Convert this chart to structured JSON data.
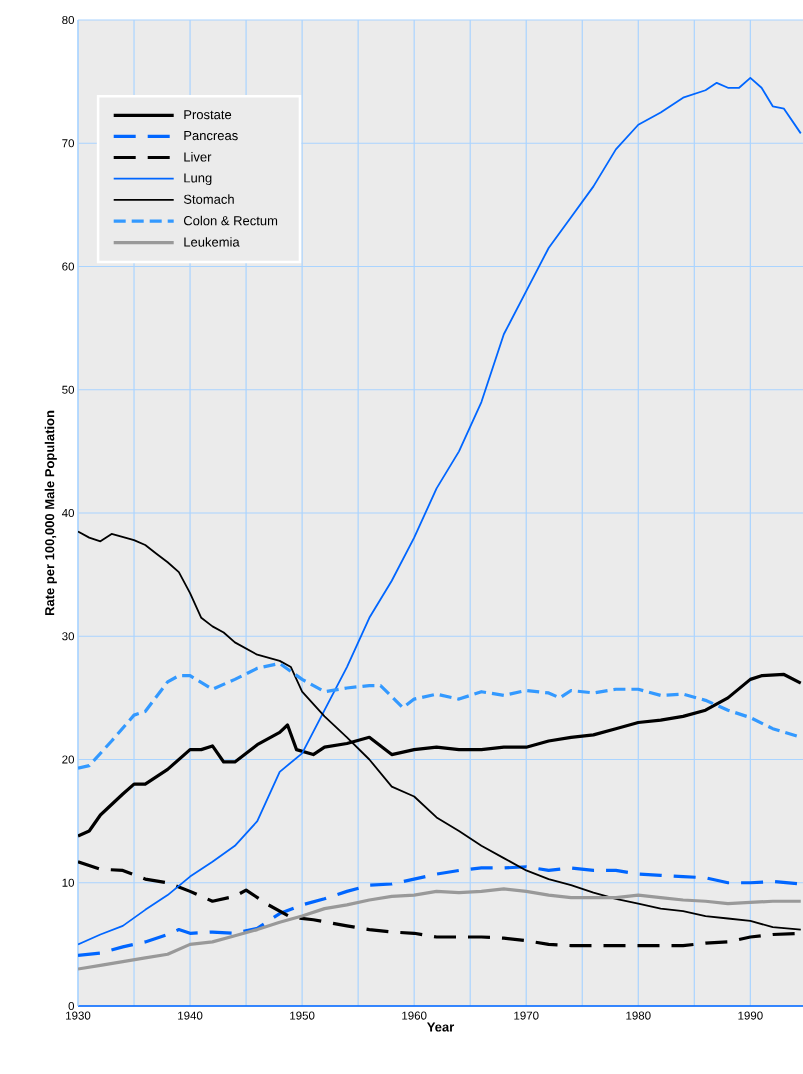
{
  "chart_data": {
    "type": "line",
    "xlabel": "Year",
    "ylabel": "Rate per 100,000 Male Population",
    "xlim": [
      1930,
      1994.7
    ],
    "ylim": [
      0,
      80
    ],
    "xticks": [
      1930,
      {
        "value": 1935,
        "label": null
      },
      1940,
      {
        "value": 1945,
        "label": null
      },
      1950,
      {
        "value": 1955,
        "label": null
      },
      1960,
      {
        "value": 1965,
        "label": null
      },
      1970,
      {
        "value": 1975,
        "label": null
      },
      1980,
      {
        "value": 1985,
        "label": null
      },
      1990
    ],
    "yticks": [
      0,
      10,
      20,
      30,
      40,
      50,
      60,
      70,
      80
    ],
    "grid": true,
    "legend": "top left",
    "marker": "none",
    "series": [
      {
        "name": "Prostate",
        "color": "#000000",
        "line_style": "solid",
        "x": [
          1930,
          1931,
          1932,
          1934,
          1935,
          1936,
          1938,
          1940,
          1941,
          1942,
          1943,
          1944,
          1946,
          1948,
          1948.7,
          1949.5,
          1951,
          1952,
          1954,
          1956,
          1958,
          1960,
          1962,
          1964,
          1966,
          1968,
          1970,
          1972,
          1974,
          1976,
          1978,
          1980,
          1982,
          1984,
          1986,
          1988,
          1990,
          1991,
          1993,
          1994.5
        ],
        "values": [
          13.8,
          14.2,
          15.5,
          17.2,
          18.0,
          18.0,
          19.2,
          20.8,
          20.8,
          21.1,
          19.8,
          19.8,
          21.2,
          22.2,
          22.8,
          20.8,
          20.4,
          21.0,
          21.3,
          21.8,
          20.4,
          20.8,
          21.0,
          20.8,
          20.8,
          21.0,
          21.0,
          21.5,
          21.8,
          22.0,
          22.5,
          23.0,
          23.2,
          23.5,
          24.0,
          25.0,
          26.5,
          26.8,
          26.9,
          26.2
        ]
      },
      {
        "name": "Pancreas",
        "color": "#0066ff",
        "line_style": "dashed",
        "x": [
          1930,
          1932,
          1934,
          1936,
          1938,
          1939,
          1940,
          1942,
          1944,
          1946,
          1948,
          1950,
          1952,
          1954,
          1956,
          1958,
          1960,
          1962,
          1964,
          1966,
          1968,
          1970,
          1972,
          1974,
          1976,
          1978,
          1980,
          1982,
          1984,
          1986,
          1988,
          1990,
          1992,
          1994.5
        ],
        "values": [
          4.1,
          4.3,
          4.8,
          5.2,
          5.8,
          6.2,
          5.9,
          6.0,
          5.9,
          6.3,
          7.5,
          8.2,
          8.7,
          9.3,
          9.8,
          9.9,
          10.3,
          10.7,
          11.0,
          11.2,
          11.2,
          11.3,
          11.0,
          11.2,
          11.0,
          11.0,
          10.7,
          10.6,
          10.5,
          10.4,
          10.0,
          10.0,
          10.1,
          9.9
        ]
      },
      {
        "name": "Liver",
        "color": "#000000",
        "line_style": "dashed",
        "x": [
          1930,
          1932,
          1934,
          1936,
          1938,
          1940,
          1942,
          1944,
          1945,
          1947,
          1949,
          1951,
          1954,
          1956,
          1958,
          1960,
          1962,
          1964,
          1966,
          1968,
          1970,
          1972,
          1974,
          1976,
          1978,
          1980,
          1982,
          1984,
          1986,
          1988,
          1990,
          1992,
          1994.5
        ],
        "values": [
          11.7,
          11.1,
          11.0,
          10.3,
          10.0,
          9.3,
          8.5,
          8.9,
          9.4,
          8.2,
          7.2,
          7.0,
          6.5,
          6.2,
          6.0,
          5.9,
          5.6,
          5.6,
          5.6,
          5.5,
          5.3,
          5.0,
          4.9,
          4.9,
          4.9,
          4.9,
          4.9,
          4.9,
          5.1,
          5.2,
          5.6,
          5.8,
          5.9
        ]
      },
      {
        "name": "Lung",
        "color": "#0066ff",
        "line_style": "solid",
        "x": [
          1930,
          1932,
          1934,
          1936,
          1938,
          1940,
          1942,
          1944,
          1946,
          1948,
          1950,
          1952,
          1954,
          1956,
          1958,
          1960,
          1962,
          1964,
          1966,
          1968,
          1970,
          1972,
          1974,
          1976,
          1978,
          1980,
          1982,
          1984,
          1986,
          1987,
          1988,
          1989,
          1990,
          1991,
          1992,
          1993,
          1994.5
        ],
        "values": [
          5.0,
          5.8,
          6.5,
          7.8,
          9.0,
          10.5,
          11.7,
          13.0,
          15.0,
          19.0,
          20.5,
          24.0,
          27.5,
          31.5,
          34.5,
          38.0,
          42.0,
          45.0,
          49.0,
          54.5,
          58.0,
          61.5,
          64.0,
          66.5,
          69.5,
          71.5,
          72.5,
          73.7,
          74.3,
          74.9,
          74.5,
          74.5,
          75.3,
          74.5,
          73.0,
          72.8,
          70.8
        ]
      },
      {
        "name": "Stomach",
        "color": "#000000",
        "line_style": "solid",
        "x": [
          1930,
          1931,
          1932,
          1933,
          1935,
          1936,
          1937,
          1938,
          1939,
          1940,
          1941,
          1942,
          1943,
          1944,
          1946,
          1948,
          1949,
          1950,
          1952,
          1954,
          1956,
          1958,
          1960,
          1962,
          1964,
          1966,
          1968,
          1970,
          1972,
          1974,
          1976,
          1978,
          1980,
          1982,
          1984,
          1986,
          1988,
          1990,
          1992,
          1994.5
        ],
        "values": [
          38.5,
          38.0,
          37.7,
          38.3,
          37.8,
          37.4,
          36.7,
          36.0,
          35.2,
          33.5,
          31.5,
          30.8,
          30.3,
          29.5,
          28.5,
          28.0,
          27.5,
          25.5,
          23.5,
          21.8,
          20.0,
          17.8,
          17.0,
          15.3,
          14.2,
          13.0,
          12.0,
          11.0,
          10.3,
          9.8,
          9.2,
          8.7,
          8.3,
          7.9,
          7.7,
          7.3,
          7.1,
          6.9,
          6.4,
          6.2
        ]
      },
      {
        "name": "Colon & Rectum",
        "color": "#3399ff",
        "line_style": "dashed",
        "x": [
          1930,
          1931,
          1933,
          1935,
          1936,
          1938,
          1939,
          1940,
          1942,
          1944,
          1946,
          1948,
          1950,
          1952,
          1954,
          1956,
          1957,
          1959,
          1960,
          1962,
          1964,
          1966,
          1968,
          1970,
          1972,
          1973,
          1974,
          1976,
          1978,
          1980,
          1982,
          1984,
          1986,
          1988,
          1990,
          1992,
          1994.5
        ],
        "values": [
          19.3,
          19.5,
          21.5,
          23.6,
          23.9,
          26.3,
          26.8,
          26.8,
          25.7,
          26.5,
          27.4,
          27.8,
          26.5,
          25.5,
          25.8,
          26.0,
          26.0,
          24.2,
          24.9,
          25.3,
          24.9,
          25.5,
          25.2,
          25.6,
          25.4,
          25.0,
          25.6,
          25.4,
          25.7,
          25.7,
          25.2,
          25.3,
          24.8,
          24.0,
          23.4,
          22.5,
          21.8
        ]
      },
      {
        "name": "Leukemia",
        "color": "#999999",
        "line_style": "solid",
        "x": [
          1930,
          1932,
          1934,
          1936,
          1938,
          1940,
          1942,
          1944,
          1946,
          1948,
          1950,
          1952,
          1954,
          1956,
          1958,
          1960,
          1962,
          1964,
          1966,
          1968,
          1970,
          1972,
          1974,
          1976,
          1978,
          1980,
          1982,
          1984,
          1986,
          1988,
          1990,
          1992,
          1994.5
        ],
        "values": [
          3.0,
          3.3,
          3.6,
          3.9,
          4.2,
          5.0,
          5.2,
          5.7,
          6.2,
          6.8,
          7.3,
          7.9,
          8.2,
          8.6,
          8.9,
          9.0,
          9.3,
          9.2,
          9.3,
          9.5,
          9.3,
          9.0,
          8.8,
          8.8,
          8.8,
          9.0,
          8.8,
          8.6,
          8.5,
          8.3,
          8.4,
          8.5,
          8.5
        ]
      }
    ]
  }
}
